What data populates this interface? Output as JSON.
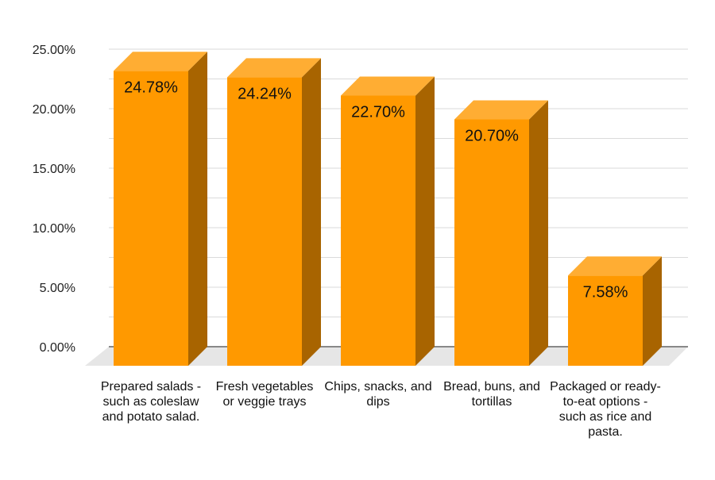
{
  "chart_data": {
    "type": "bar",
    "categories": [
      "Prepared salads - such as coleslaw and potato salad.",
      "Fresh vegetables or veggie trays",
      "Chips, snacks, and dips",
      "Bread, buns, and tortillas",
      "Packaged or ready-to-eat options - such as rice and pasta."
    ],
    "values": [
      24.78,
      24.24,
      22.7,
      20.7,
      7.58
    ],
    "data_labels": [
      "24.78%",
      "24.24%",
      "22.70%",
      "20.70%",
      "7.58%"
    ],
    "yticks": [
      0,
      5,
      10,
      15,
      20,
      25
    ],
    "ytick_labels": [
      "0.00%",
      "5.00%",
      "10.00%",
      "15.00%",
      "20.00%",
      "25.00%"
    ],
    "ylim": [
      0,
      25
    ],
    "grid": true,
    "style": "3d-column",
    "colors": {
      "bar_front": "#FF9900",
      "bar_top": "#FFAD33",
      "bar_side": "#A86400",
      "floor": "#E6E6E6",
      "grid": "#DADADA",
      "axis": "#888888"
    }
  }
}
